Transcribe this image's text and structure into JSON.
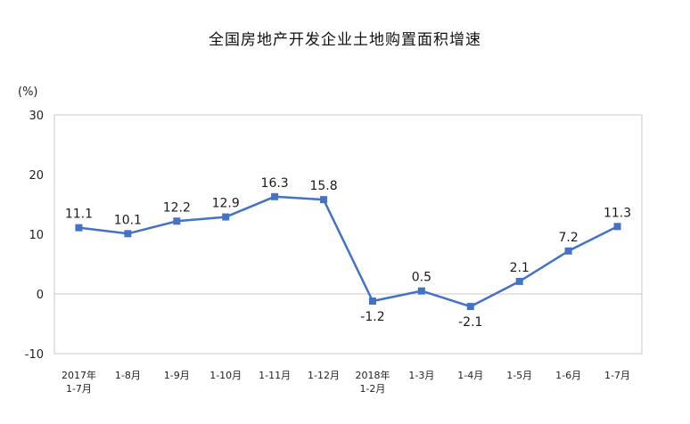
{
  "title": "全国房地产开发企业土地购置面积增速",
  "unit_label": "(%)",
  "chart_data": {
    "type": "line",
    "title": "全国房地产开发企业土地购置面积增速",
    "ylabel": "(%)",
    "xlabel": "",
    "ylim": [
      -10,
      30
    ],
    "yticks": [
      30,
      20,
      10,
      0,
      -10
    ],
    "grid": false,
    "categories": [
      [
        "2017年",
        "1-7月"
      ],
      [
        "1-8月"
      ],
      [
        "1-9月"
      ],
      [
        "1-10月"
      ],
      [
        "1-11月"
      ],
      [
        "1-12月"
      ],
      [
        "2018年",
        "1-2月"
      ],
      [
        "1-3月"
      ],
      [
        "1-4月"
      ],
      [
        "1-5月"
      ],
      [
        "1-6月"
      ],
      [
        "1-7月"
      ]
    ],
    "series": [
      {
        "values": [
          11.1,
          10.1,
          12.2,
          12.9,
          16.3,
          15.8,
          -1.2,
          0.5,
          -2.1,
          2.1,
          7.2,
          11.3
        ],
        "labels": [
          "11.1",
          "10.1",
          "12.2",
          "12.9",
          "16.3",
          "15.8",
          "-1.2",
          "0.5",
          "-2.1",
          "2.1",
          "7.2",
          "11.3"
        ],
        "label_side": [
          "above",
          "above",
          "above",
          "above",
          "above",
          "above",
          "below",
          "above",
          "below",
          "above",
          "above",
          "above"
        ]
      }
    ],
    "colors": {
      "line": "#4472C4",
      "marker": "#4472C4",
      "axis": "#c8c8c8"
    }
  }
}
